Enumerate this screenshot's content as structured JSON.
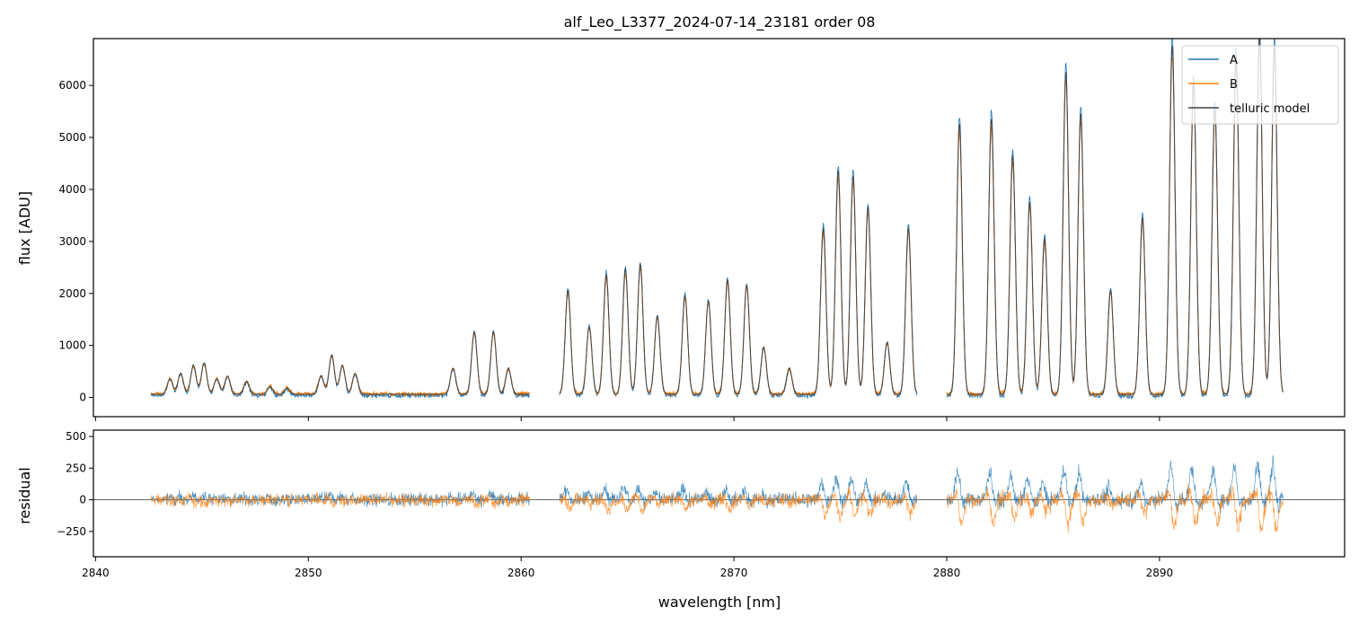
{
  "chart_data": [
    {
      "type": "line",
      "title": "alf_Leo_L3377_2024-07-14_23181  order 08",
      "xlabel": "",
      "ylabel": "flux [ADU]",
      "xlim": [
        2839.9,
        2898.7
      ],
      "ylim": [
        -370,
        6900
      ],
      "yticks": [
        0,
        1000,
        2000,
        3000,
        4000,
        5000,
        6000
      ],
      "xticks": [
        2840,
        2850,
        2860,
        2870,
        2880,
        2890
      ],
      "segments": [
        [
          2842.6,
          2860.4
        ],
        [
          2861.8,
          2878.6
        ],
        [
          2880.0,
          2895.8
        ]
      ],
      "legend": {
        "position": "top-right",
        "entries": [
          "A",
          "B",
          "telluric model"
        ]
      },
      "series": [
        {
          "name": "A",
          "color": "#1f77b4"
        },
        {
          "name": "B",
          "color": "#ff7f0e"
        },
        {
          "name": "telluric model",
          "color": "#404040"
        }
      ],
      "model_peaks": [
        {
          "x": 2843.5,
          "y": 300
        },
        {
          "x": 2844.0,
          "y": 400
        },
        {
          "x": 2844.6,
          "y": 550
        },
        {
          "x": 2845.1,
          "y": 600
        },
        {
          "x": 2845.7,
          "y": 300
        },
        {
          "x": 2846.2,
          "y": 350
        },
        {
          "x": 2847.1,
          "y": 250
        },
        {
          "x": 2848.2,
          "y": 150
        },
        {
          "x": 2849.0,
          "y": 120
        },
        {
          "x": 2850.6,
          "y": 350
        },
        {
          "x": 2851.1,
          "y": 750
        },
        {
          "x": 2851.6,
          "y": 550
        },
        {
          "x": 2852.2,
          "y": 400
        },
        {
          "x": 2856.8,
          "y": 500
        },
        {
          "x": 2857.8,
          "y": 1200
        },
        {
          "x": 2858.7,
          "y": 1200
        },
        {
          "x": 2859.4,
          "y": 500
        },
        {
          "x": 2862.2,
          "y": 2000
        },
        {
          "x": 2863.2,
          "y": 1300
        },
        {
          "x": 2864.0,
          "y": 2300
        },
        {
          "x": 2864.9,
          "y": 2400
        },
        {
          "x": 2865.6,
          "y": 2500
        },
        {
          "x": 2866.4,
          "y": 1500
        },
        {
          "x": 2867.7,
          "y": 1900
        },
        {
          "x": 2868.8,
          "y": 1800
        },
        {
          "x": 2869.7,
          "y": 2200
        },
        {
          "x": 2870.6,
          "y": 2100
        },
        {
          "x": 2871.4,
          "y": 900
        },
        {
          "x": 2872.6,
          "y": 500
        },
        {
          "x": 2874.2,
          "y": 3200
        },
        {
          "x": 2874.9,
          "y": 4300
        },
        {
          "x": 2875.6,
          "y": 4200
        },
        {
          "x": 2876.3,
          "y": 3600
        },
        {
          "x": 2877.2,
          "y": 1000
        },
        {
          "x": 2878.2,
          "y": 3200
        },
        {
          "x": 2880.6,
          "y": 5200
        },
        {
          "x": 2882.1,
          "y": 5300
        },
        {
          "x": 2883.1,
          "y": 4600
        },
        {
          "x": 2883.9,
          "y": 3700
        },
        {
          "x": 2884.6,
          "y": 3000
        },
        {
          "x": 2885.6,
          "y": 6200
        },
        {
          "x": 2886.3,
          "y": 5400
        },
        {
          "x": 2887.7,
          "y": 2000
        },
        {
          "x": 2889.2,
          "y": 3400
        },
        {
          "x": 2890.6,
          "y": 6700
        },
        {
          "x": 2891.6,
          "y": 6000
        },
        {
          "x": 2892.6,
          "y": 5500
        },
        {
          "x": 2893.6,
          "y": 6500
        },
        {
          "x": 2894.7,
          "y": 6900
        },
        {
          "x": 2895.4,
          "y": 6700
        }
      ]
    },
    {
      "type": "line",
      "title": "",
      "xlabel": "wavelength [nm]",
      "ylabel": "residual",
      "xlim": [
        2839.9,
        2898.7
      ],
      "ylim": [
        -450,
        550
      ],
      "yticks": [
        -250,
        0,
        250,
        500
      ],
      "xticks": [
        2840,
        2850,
        2860,
        2870,
        2880,
        2890
      ],
      "series": [
        {
          "name": "A",
          "color": "#1f77b4"
        },
        {
          "name": "B",
          "color": "#ff7f0e"
        }
      ],
      "reference_line": 0
    }
  ]
}
